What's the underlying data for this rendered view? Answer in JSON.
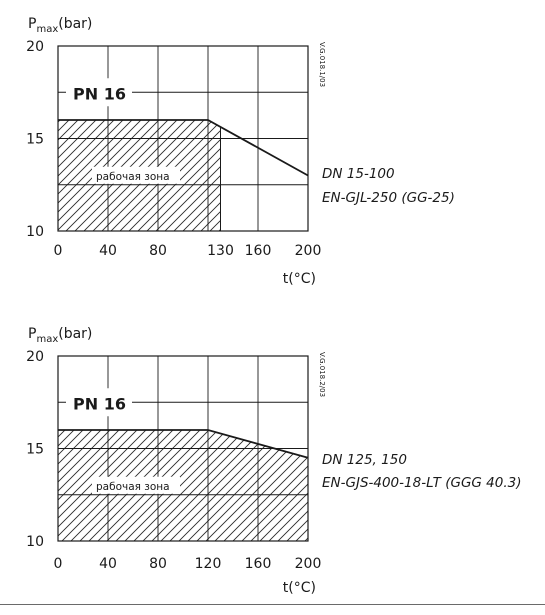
{
  "chart_data": [
    {
      "type": "area",
      "ylabel": {
        "main": "P",
        "sub": "max",
        "unit": "(bar)"
      },
      "xlabel": "t(°C)",
      "ylim": [
        10,
        20
      ],
      "xlim": [
        0,
        200
      ],
      "yticks": [
        10,
        15,
        20
      ],
      "xticks": [
        "0",
        "40",
        "80",
        "130",
        "160",
        "200"
      ],
      "xtick_values": [
        0,
        40,
        80,
        130,
        160,
        200
      ],
      "grid": true,
      "grid_x": [
        0,
        40,
        80,
        120,
        160,
        200
      ],
      "grid_y": [
        10,
        12.5,
        15,
        17.5,
        20
      ],
      "pn_label": "PN 16",
      "zone_label": "рабочая зона",
      "code": "V.G.018.1/03",
      "curve": {
        "x": [
          0,
          120,
          200
        ],
        "y": [
          16,
          16,
          13
        ]
      },
      "zone_x_max": 130,
      "annotation": [
        "DN 15-100",
        "EN-GJL-250 (GG-25)"
      ]
    },
    {
      "type": "area",
      "ylabel": {
        "main": "P",
        "sub": "max",
        "unit": "(bar)"
      },
      "xlabel": "t(°C)",
      "ylim": [
        10,
        20
      ],
      "xlim": [
        0,
        200
      ],
      "yticks": [
        10,
        15,
        20
      ],
      "xticks": [
        "0",
        "40",
        "80",
        "120",
        "160",
        "200"
      ],
      "xtick_values": [
        0,
        40,
        80,
        120,
        160,
        200
      ],
      "grid": true,
      "grid_x": [
        0,
        40,
        80,
        120,
        160,
        200
      ],
      "grid_y": [
        10,
        12.5,
        15,
        17.5,
        20
      ],
      "pn_label": "PN 16",
      "zone_label": "рабочая зона",
      "code": "V.G.018.2/03",
      "curve": {
        "x": [
          0,
          120,
          200
        ],
        "y": [
          16,
          16,
          14.5
        ]
      },
      "zone_x_max": 200,
      "annotation": [
        "DN 125, 150",
        "EN-GJS-400-18-LT (GGG 40.3)"
      ]
    }
  ]
}
